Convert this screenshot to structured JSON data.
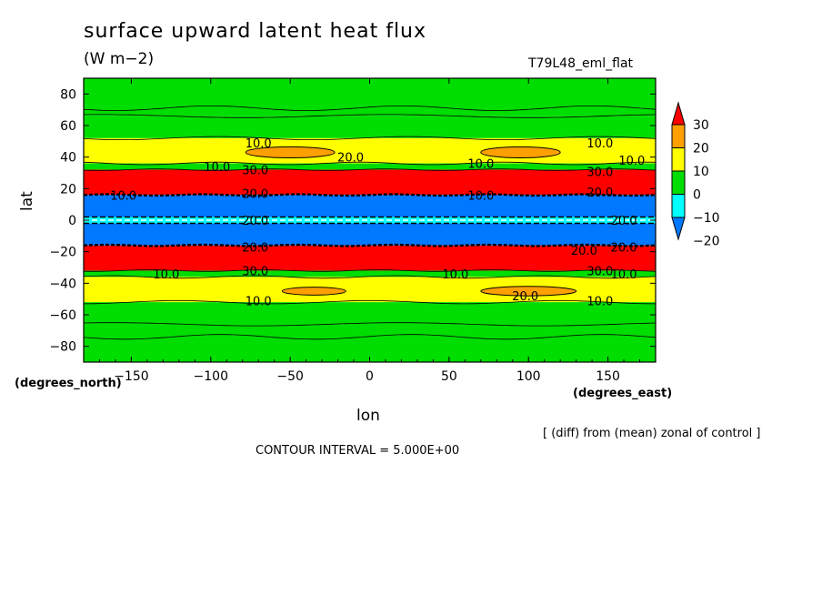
{
  "chart_data": {
    "type": "heatmap",
    "title": "surface upward latent heat flux",
    "units": "(W m−2)",
    "run_name": "T79L48_eml_flat",
    "xlabel": "lon",
    "ylabel": "lat",
    "x_unit_label": "(degrees_east)",
    "y_unit_label": "(degrees_north)",
    "xlim": [
      -180,
      180
    ],
    "ylim": [
      -90,
      90
    ],
    "x_ticks": [
      -150,
      -100,
      -50,
      0,
      50,
      100,
      150
    ],
    "y_ticks": [
      80,
      60,
      40,
      20,
      0,
      -20,
      -40,
      -60,
      -80
    ],
    "x_tick_labels": [
      "−150",
      "−100",
      "−50",
      "0",
      "50",
      "100",
      "150"
    ],
    "y_tick_labels": [
      "80",
      "60",
      "40",
      "20",
      "0",
      "−20",
      "−40",
      "−60",
      "−80"
    ],
    "colorbar": {
      "levels": [
        -20,
        -10,
        0,
        10,
        20,
        30
      ],
      "level_labels": [
        "−20",
        "−10",
        "0",
        "10",
        "20",
        "30"
      ],
      "colors": [
        "#0078ff",
        "#00ffff",
        "#00dd00",
        "#ffff00",
        "#ffa000",
        "#ff0000"
      ]
    },
    "zonal_bands": [
      {
        "lat_min": 66,
        "lat_max": 90,
        "class": "0 to 10"
      },
      {
        "lat_min": 52,
        "lat_max": 66,
        "class": "0 to 10"
      },
      {
        "lat_min": 36,
        "lat_max": 52,
        "class": "10 to 20"
      },
      {
        "lat_min": 32,
        "lat_max": 36,
        "class": "0 to 10"
      },
      {
        "lat_min": 16,
        "lat_max": 32,
        "class": "above 30"
      },
      {
        "lat_min": 2,
        "lat_max": 16,
        "class": "below -20"
      },
      {
        "lat_min": -2,
        "lat_max": 2,
        "class": "-10 to 0"
      },
      {
        "lat_min": -16,
        "lat_max": -2,
        "class": "below -20"
      },
      {
        "lat_min": -32,
        "lat_max": -16,
        "class": "above 30"
      },
      {
        "lat_min": -36,
        "lat_max": -32,
        "class": "0 to 10"
      },
      {
        "lat_min": -52,
        "lat_max": -36,
        "class": "10 to 20"
      },
      {
        "lat_min": -90,
        "lat_max": -52,
        "class": "0 to 10"
      }
    ],
    "blobs_20_to_30": [
      {
        "lon": -50,
        "lat": 43,
        "dlon": 28,
        "dlat": 3.5
      },
      {
        "lon": 95,
        "lat": 43,
        "dlon": 25,
        "dlat": 3.5
      },
      {
        "lon": -35,
        "lat": -45,
        "dlon": 20,
        "dlat": 2.5
      },
      {
        "lon": 100,
        "lat": -45,
        "dlon": 30,
        "dlat": 3
      }
    ],
    "contour_labels": [
      {
        "text": "10.0",
        "lon": -70,
        "lat": 49
      },
      {
        "text": "20.0",
        "lon": -12,
        "lat": 40
      },
      {
        "text": "10.0",
        "lon": 145,
        "lat": 49
      },
      {
        "text": "10.0",
        "lon": -96,
        "lat": 34
      },
      {
        "text": "30.0",
        "lon": -72,
        "lat": 32
      },
      {
        "text": "10.0",
        "lon": 70,
        "lat": 36
      },
      {
        "text": "10.0",
        "lon": 165,
        "lat": 38
      },
      {
        "text": "30.0",
        "lon": 145,
        "lat": 31
      },
      {
        "text": "20.0",
        "lon": 145,
        "lat": 18
      },
      {
        "text": "20.0",
        "lon": -72,
        "lat": 17
      },
      {
        "text": "10.0",
        "lon": -155,
        "lat": 16
      },
      {
        "text": "10.0",
        "lon": 70,
        "lat": 16
      },
      {
        "text": "20.0",
        "lon": -72,
        "lat": 0
      },
      {
        "text": "20.0",
        "lon": 160,
        "lat": 0
      },
      {
        "text": "20.0",
        "lon": -72,
        "lat": -17
      },
      {
        "text": "20.0",
        "lon": 160,
        "lat": -17
      },
      {
        "text": "20.0",
        "lon": 135,
        "lat": -19
      },
      {
        "text": "10.0",
        "lon": -128,
        "lat": -34
      },
      {
        "text": "30.0",
        "lon": -72,
        "lat": -32
      },
      {
        "text": "10.0",
        "lon": 54,
        "lat": -34
      },
      {
        "text": "30.0",
        "lon": 145,
        "lat": -32
      },
      {
        "text": "10.0",
        "lon": 160,
        "lat": -34
      },
      {
        "text": "20.0",
        "lon": 98,
        "lat": -48
      },
      {
        "text": "10.0",
        "lon": -70,
        "lat": -51
      },
      {
        "text": "10.0",
        "lon": 145,
        "lat": -51
      }
    ]
  },
  "annotations": {
    "note": "[ (diff) from (mean) zonal of control ]",
    "contour_interval": "CONTOUR INTERVAL = 5.000E+00"
  }
}
